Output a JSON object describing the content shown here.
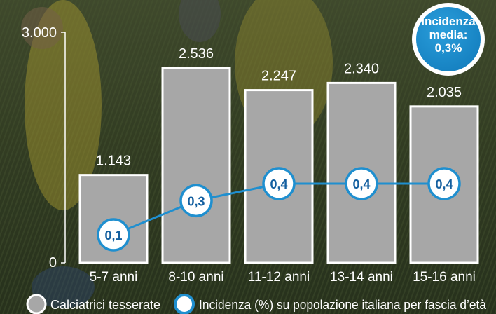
{
  "chart_data": {
    "type": "bar",
    "categories": [
      "5-7 anni",
      "8-10 anni",
      "11-12 anni",
      "13-14 anni",
      "15-16 anni"
    ],
    "ylim": [
      0,
      3000
    ],
    "yticks": [
      "0",
      "3.000"
    ],
    "series": [
      {
        "name": "Calciatrici tesserate",
        "type": "bar",
        "values": [
          1143,
          2536,
          2247,
          2340,
          2035
        ],
        "labels": [
          "1.143",
          "2.536",
          "2.247",
          "2.340",
          "2.035"
        ],
        "color": "#a7a7a7"
      },
      {
        "name": "Incidenza (%) su popolazione italiana per fascia d’età",
        "type": "line",
        "values": [
          0.1,
          0.3,
          0.4,
          0.4,
          0.4
        ],
        "labels": [
          "0,1",
          "0,3",
          "0,4",
          "0,4",
          "0,4"
        ],
        "color": "#1f8fcf"
      }
    ],
    "badge": {
      "lines": [
        "Incidenza",
        "media:",
        "0,3%"
      ],
      "color": "#1a8ccc"
    },
    "legend": {
      "position": "bottom",
      "items": [
        "Calciatrici tesserate",
        "Incidenza (%) su popolazione italiana per fascia d’età"
      ]
    },
    "colors": {
      "grass": "#3c4a2a",
      "bar_fill": "#a7a7a7",
      "bar_stroke": "#ffffff",
      "line": "#1f8fcf",
      "text": "#ffffff"
    }
  }
}
